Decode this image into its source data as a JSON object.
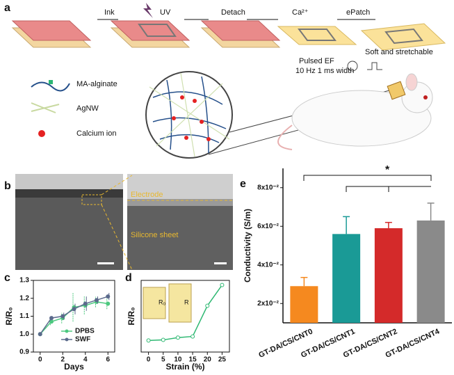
{
  "panel_a": {
    "label": "a",
    "steps": [
      "Ink",
      "UV",
      "Detach",
      "Ca²⁺",
      "ePatch"
    ],
    "legend": [
      "MA-alginate",
      "AgNW",
      "Calcium ion"
    ],
    "stimulus": [
      "Pulsed EF",
      "10 Hz 1 ms width"
    ],
    "feature": "Soft and stretchable"
  },
  "panel_b": {
    "label": "b",
    "annotations": [
      "Electrode",
      "Silicone sheet"
    ]
  },
  "chart_data": [
    {
      "type": "line",
      "panel": "c",
      "x_label": "Days",
      "y_label": "R/R₀",
      "x": [
        0,
        1,
        2,
        3,
        4,
        5,
        6
      ],
      "series": [
        {
          "name": "DPBS",
          "color": "#4cc97f",
          "values": [
            1.0,
            1.07,
            1.09,
            1.15,
            1.16,
            1.18,
            1.17
          ],
          "errors": [
            0,
            0.02,
            0.03,
            0.08,
            0.05,
            0.03,
            0.03
          ]
        },
        {
          "name": "SWF",
          "color": "#5b6a8c",
          "values": [
            1.0,
            1.09,
            1.1,
            1.14,
            1.17,
            1.19,
            1.21
          ],
          "errors": [
            0,
            0.01,
            0.02,
            0.03,
            0.04,
            0.02,
            0.02
          ]
        }
      ],
      "xlim": [
        -0.6,
        6.6
      ],
      "xticks": [
        0,
        2,
        4,
        6
      ],
      "ylim": [
        0.9,
        1.3
      ],
      "yticks": [
        0.9,
        {
          "value": 1,
          "label": "1.0"
        },
        1.1,
        1.2,
        1.3
      ]
    },
    {
      "type": "line",
      "panel": "d",
      "x_label": "Strain (%)",
      "y_label": "R/R₀",
      "x": [
        0,
        5,
        10,
        15,
        20,
        25
      ],
      "series": [
        {
          "color": "#2eb872",
          "values": [
            1.0,
            1.05,
            1.25,
            1.35,
            4.0,
            5.8
          ]
        }
      ],
      "annotations": [
        "R₀",
        "R"
      ],
      "xlim": [
        -2.5,
        27.5
      ],
      "xticks": [
        0,
        5,
        10,
        15,
        20,
        25
      ],
      "ylim": [
        0,
        6.2
      ]
    },
    {
      "type": "bar",
      "panel": "e",
      "y_label": "Conductivity (S/m)",
      "categories": [
        "GT-DA/CS/CNT0",
        "GT-DA/CS/CNT1",
        "GT-DA/CS/CNT2",
        "GT-DA/CS/CNT4"
      ],
      "values": [
        0.029,
        0.056,
        0.059,
        0.063
      ],
      "errors": [
        0.0045,
        0.009,
        0.003,
        0.009
      ],
      "colors": [
        "#f5891f",
        "#1a9a96",
        "#d42a2a",
        "#8a8a8a"
      ],
      "significance": "*",
      "ylim": [
        0.01,
        0.09
      ],
      "yticks": [
        {
          "value": 0.02,
          "label": "2x10⁻²"
        },
        {
          "value": 0.04,
          "label": "4x10⁻²"
        },
        {
          "value": 0.06,
          "label": "6x10⁻²"
        },
        {
          "value": 0.08,
          "label": "8x10⁻²"
        }
      ]
    }
  ]
}
